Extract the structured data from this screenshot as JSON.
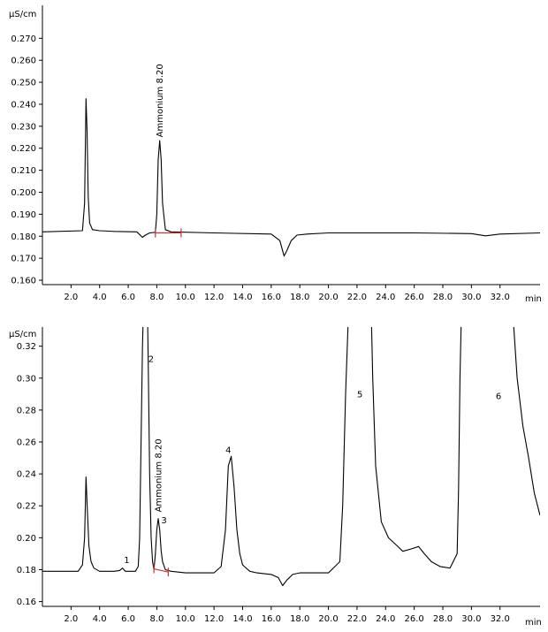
{
  "chart_data": [
    {
      "type": "line",
      "title": "",
      "ylabel": "µS/cm",
      "xlabel": "min",
      "xlim": [
        0,
        34.8
      ],
      "ylim": [
        0.158,
        0.285
      ],
      "yticks": [
        "0.160",
        "0.170",
        "0.180",
        "0.190",
        "0.200",
        "0.210",
        "0.220",
        "0.230",
        "0.240",
        "0.250",
        "0.260",
        "0.270"
      ],
      "ytick_values": [
        0.16,
        0.17,
        0.18,
        0.19,
        0.2,
        0.21,
        0.22,
        0.23,
        0.24,
        0.25,
        0.26,
        0.27
      ],
      "xticks": [
        "2.0",
        "4.0",
        "6.0",
        "8.0",
        "10.0",
        "12.0",
        "14.0",
        "16.0",
        "18.0",
        "20.0",
        "22.0",
        "24.0",
        "26.0",
        "28.0",
        "30.0",
        "32.0"
      ],
      "xtick_values": [
        2,
        4,
        6,
        8,
        10,
        12,
        14,
        16,
        18,
        20,
        22,
        24,
        26,
        28,
        30,
        32
      ],
      "integration_baseline": {
        "x": [
          7.9,
          9.7
        ],
        "y": [
          0.1815,
          0.1815
        ],
        "color": "#cc3333"
      },
      "annotations": [
        {
          "text": "Ammonium 8.20",
          "x": 8.2,
          "y": 0.225,
          "rotated": true
        }
      ],
      "series": [
        {
          "color": "#000000",
          "x": [
            0,
            2.8,
            2.95,
            3.05,
            3.12,
            3.2,
            3.3,
            3.5,
            4.0,
            5.0,
            6.6,
            7.0,
            7.2,
            7.5,
            7.9,
            8.0,
            8.1,
            8.2,
            8.3,
            8.4,
            8.6,
            9.0,
            12.0,
            16.0,
            16.6,
            16.9,
            17.1,
            17.4,
            17.8,
            18.5,
            20.0,
            26.0,
            30.0,
            31.0,
            32.0,
            34.8
          ],
          "y": [
            0.182,
            0.1825,
            0.195,
            0.2425,
            0.228,
            0.198,
            0.186,
            0.183,
            0.1825,
            0.1822,
            0.182,
            0.1795,
            0.1805,
            0.1815,
            0.1818,
            0.19,
            0.215,
            0.2235,
            0.215,
            0.195,
            0.183,
            0.182,
            0.1815,
            0.181,
            0.178,
            0.171,
            0.1735,
            0.178,
            0.1805,
            0.181,
            0.1815,
            0.1815,
            0.1812,
            0.1802,
            0.181,
            0.1815
          ]
        }
      ]
    },
    {
      "type": "line",
      "title": "",
      "ylabel": "µS/cm",
      "xlabel": "min",
      "xlim": [
        0,
        34.8
      ],
      "ylim": [
        0.157,
        0.332
      ],
      "yticks": [
        "0.16",
        "0.18",
        "0.20",
        "0.22",
        "0.24",
        "0.26",
        "0.28",
        "0.30",
        "0.32"
      ],
      "ytick_values": [
        0.16,
        0.18,
        0.2,
        0.22,
        0.24,
        0.26,
        0.28,
        0.3,
        0.32
      ],
      "xticks": [
        "2.0",
        "4.0",
        "6.0",
        "8.0",
        "10.0",
        "12.0",
        "14.0",
        "16.0",
        "18.0",
        "20.0",
        "22.0",
        "24.0",
        "26.0",
        "28.0",
        "30.0",
        "32.0"
      ],
      "xtick_values": [
        2,
        4,
        6,
        8,
        10,
        12,
        14,
        16,
        18,
        20,
        22,
        24,
        26,
        28,
        30,
        32
      ],
      "integration_baseline": {
        "x": [
          7.8,
          8.8
        ],
        "y": [
          0.1805,
          0.1785
        ],
        "color": "#cc3333"
      },
      "annotations": [
        {
          "text": "Ammonium 8.20",
          "x": 8.1,
          "y": 0.216,
          "rotated": true
        },
        {
          "text": "1",
          "x": 5.9,
          "y": 0.184,
          "rotated": false
        },
        {
          "text": "2",
          "x": 7.6,
          "y": 0.31,
          "rotated": false
        },
        {
          "text": "3",
          "x": 8.5,
          "y": 0.209,
          "rotated": false
        },
        {
          "text": "4",
          "x": 13.0,
          "y": 0.253,
          "rotated": false
        },
        {
          "text": "5",
          "x": 22.2,
          "y": 0.288,
          "rotated": false
        },
        {
          "text": "6",
          "x": 31.9,
          "y": 0.287,
          "rotated": false
        }
      ],
      "series": [
        {
          "color": "#000000",
          "x": [
            0,
            2.5,
            2.8,
            2.95,
            3.05,
            3.15,
            3.25,
            3.4,
            3.6,
            4.0,
            5.0,
            5.4,
            5.6,
            5.8,
            6.5,
            6.7,
            6.8,
            6.9,
            7.0,
            7.05,
            7.35,
            7.4,
            7.5,
            7.6,
            7.7,
            7.8,
            7.9,
            8.0,
            8.1,
            8.2,
            8.3,
            8.4,
            8.6,
            9.0,
            10.0,
            12.0,
            12.5,
            12.8,
            13.0,
            13.2,
            13.4,
            13.6,
            13.8,
            14.0,
            14.5,
            15.0,
            16.0,
            16.5,
            16.8,
            17.1,
            17.5,
            18.0,
            19.0,
            20.0,
            20.8,
            21.0,
            21.2,
            21.4,
            21.5,
            23.0,
            23.1,
            23.3,
            23.7,
            24.2,
            24.8,
            25.2,
            25.8,
            26.3,
            26.7,
            27.2,
            27.8,
            28.5,
            29.0,
            29.1,
            29.2,
            29.3,
            32.9,
            33.2,
            33.6,
            34.0,
            34.4,
            34.8
          ],
          "y": [
            0.179,
            0.179,
            0.183,
            0.2,
            0.238,
            0.215,
            0.195,
            0.185,
            0.181,
            0.179,
            0.179,
            0.1795,
            0.181,
            0.179,
            0.179,
            0.182,
            0.2,
            0.26,
            0.32,
            0.34,
            0.34,
            0.31,
            0.24,
            0.2,
            0.185,
            0.18,
            0.19,
            0.205,
            0.212,
            0.205,
            0.192,
            0.185,
            0.18,
            0.179,
            0.178,
            0.178,
            0.182,
            0.205,
            0.245,
            0.251,
            0.232,
            0.205,
            0.19,
            0.183,
            0.179,
            0.178,
            0.177,
            0.175,
            0.17,
            0.1735,
            0.177,
            0.178,
            0.178,
            0.178,
            0.185,
            0.22,
            0.29,
            0.34,
            0.34,
            0.34,
            0.3,
            0.245,
            0.21,
            0.2,
            0.195,
            0.1915,
            0.193,
            0.1945,
            0.19,
            0.185,
            0.182,
            0.181,
            0.19,
            0.23,
            0.3,
            0.34,
            0.34,
            0.3,
            0.27,
            0.25,
            0.228,
            0.214
          ]
        }
      ]
    }
  ]
}
